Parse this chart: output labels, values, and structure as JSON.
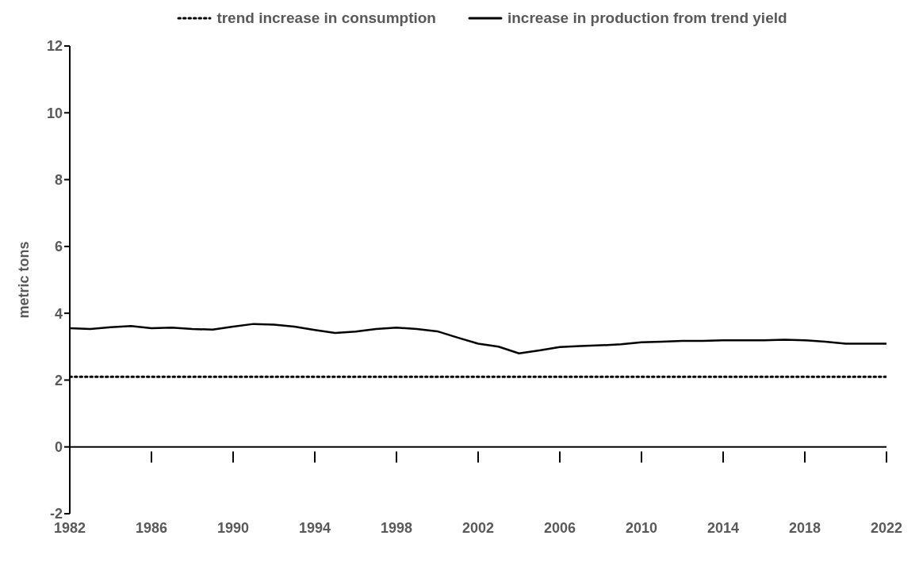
{
  "chart_data": {
    "type": "line",
    "ylabel": "metric tons",
    "x": [
      1982,
      1983,
      1984,
      1985,
      1986,
      1987,
      1988,
      1989,
      1990,
      1991,
      1992,
      1993,
      1994,
      1995,
      1996,
      1997,
      1998,
      1999,
      2000,
      2001,
      2002,
      2003,
      2004,
      2005,
      2006,
      2007,
      2008,
      2009,
      2010,
      2011,
      2012,
      2013,
      2014,
      2015,
      2016,
      2017,
      2018,
      2019,
      2020,
      2021,
      2022
    ],
    "series": [
      {
        "name": "trend increase in consumption",
        "color": "#000000",
        "line_style": "dotted",
        "values": [
          2.1,
          2.1,
          2.1,
          2.1,
          2.1,
          2.1,
          2.1,
          2.1,
          2.1,
          2.1,
          2.1,
          2.1,
          2.1,
          2.1,
          2.1,
          2.1,
          2.1,
          2.1,
          2.1,
          2.1,
          2.1,
          2.1,
          2.1,
          2.1,
          2.1,
          2.1,
          2.1,
          2.1,
          2.1,
          2.1,
          2.1,
          2.1,
          2.1,
          2.1,
          2.1,
          2.1,
          2.1,
          2.1,
          2.1,
          2.1,
          2.1
        ]
      },
      {
        "name": "increase in production from trend yield",
        "color": "#000000",
        "line_style": "solid",
        "values": [
          3.55,
          3.53,
          3.58,
          3.62,
          3.55,
          3.57,
          3.53,
          3.51,
          3.6,
          3.68,
          3.66,
          3.6,
          3.5,
          3.41,
          3.45,
          3.53,
          3.57,
          3.53,
          3.46,
          3.27,
          3.09,
          3.0,
          2.8,
          2.89,
          2.99,
          3.02,
          3.04,
          3.07,
          3.13,
          3.15,
          3.17,
          3.17,
          3.19,
          3.19,
          3.19,
          3.21,
          3.19,
          3.15,
          3.09,
          3.09,
          3.09
        ]
      }
    ],
    "xlim": [
      1982,
      2022
    ],
    "xticks": [
      1982,
      1986,
      1990,
      1994,
      1998,
      2002,
      2006,
      2010,
      2014,
      2018,
      2022
    ],
    "ylim": [
      -2,
      12
    ],
    "yticks": [
      -2,
      0,
      2,
      4,
      6,
      8,
      10,
      12
    ],
    "legend": "top",
    "marker": "none"
  }
}
